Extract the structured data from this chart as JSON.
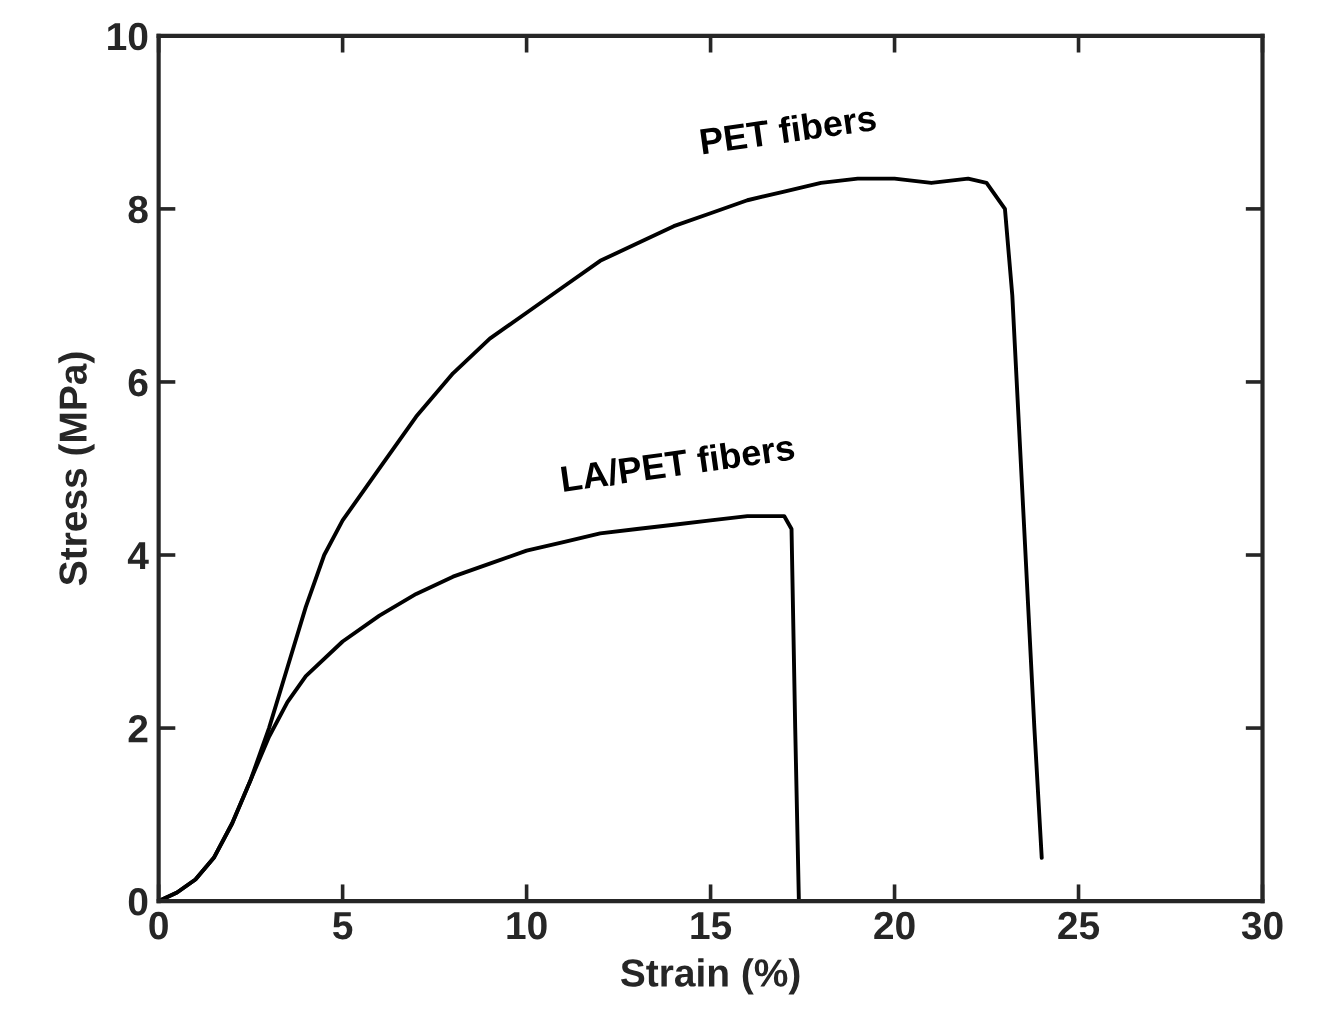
{
  "chart_data": {
    "type": "line",
    "xlabel": "Strain (%)",
    "ylabel": "Stress (MPa)",
    "xlim": [
      0,
      30
    ],
    "ylim": [
      0,
      10
    ],
    "xticks": [
      0,
      5,
      10,
      15,
      20,
      25,
      30
    ],
    "yticks": [
      0,
      2,
      4,
      6,
      8,
      10
    ],
    "grid": false,
    "legend": false,
    "marker": "none",
    "line_style": "solid",
    "series": [
      {
        "name": "PET fibers",
        "color": "#000000",
        "x": [
          0,
          0.5,
          1,
          1.5,
          2,
          2.5,
          3,
          3.5,
          4,
          4.5,
          5,
          6,
          7,
          8,
          9,
          10,
          11,
          12,
          13,
          14,
          15,
          16,
          17,
          18,
          19,
          20,
          21,
          22,
          22.5,
          23,
          23.2,
          23.5,
          23.8,
          24
        ],
        "values": [
          0,
          0.1,
          0.25,
          0.5,
          0.9,
          1.4,
          2.0,
          2.7,
          3.4,
          4.0,
          4.4,
          5.0,
          5.6,
          6.1,
          6.5,
          6.8,
          7.1,
          7.4,
          7.6,
          7.8,
          7.95,
          8.1,
          8.2,
          8.3,
          8.35,
          8.35,
          8.3,
          8.35,
          8.3,
          8.0,
          7.0,
          4.5,
          2.0,
          0.5
        ]
      },
      {
        "name": "LA/PET fibers",
        "color": "#000000",
        "x": [
          0,
          0.5,
          1,
          1.5,
          2,
          2.5,
          3,
          3.5,
          4,
          5,
          6,
          7,
          8,
          9,
          10,
          11,
          12,
          13,
          14,
          15,
          16,
          17,
          17.2,
          17.3,
          17.4
        ],
        "values": [
          0,
          0.1,
          0.25,
          0.5,
          0.9,
          1.4,
          1.9,
          2.3,
          2.6,
          3.0,
          3.3,
          3.55,
          3.75,
          3.9,
          4.05,
          4.15,
          4.25,
          4.3,
          4.35,
          4.4,
          4.45,
          4.45,
          4.3,
          2.0,
          0
        ]
      }
    ]
  }
}
